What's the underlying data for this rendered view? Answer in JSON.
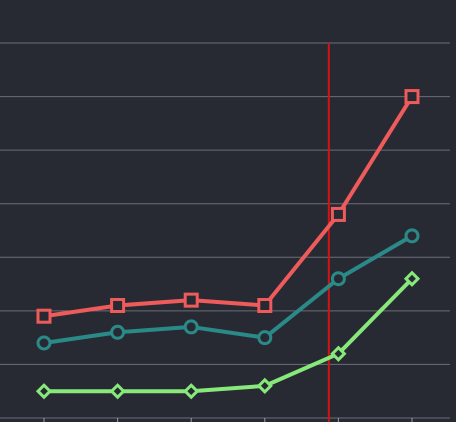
{
  "colors": {
    "background": "#272a33",
    "grid": "#6b6e76",
    "marker_line": "#d41313",
    "axis_tick": "#9a9da4"
  },
  "chart_data": {
    "type": "line",
    "x": [
      1,
      2,
      3,
      4,
      5,
      6
    ],
    "ylim": [
      0,
      7
    ],
    "grid": "horizontal",
    "vertical_marker_x": 4.87,
    "series": [
      {
        "color": "#ef5b5b",
        "marker": "square",
        "values": [
          1.9,
          2.1,
          2.2,
          2.1,
          3.8,
          6.0
        ]
      },
      {
        "color": "#2a8a88",
        "marker": "circle",
        "values": [
          1.4,
          1.6,
          1.7,
          1.5,
          2.6,
          3.4
        ]
      },
      {
        "color": "#86e97a",
        "marker": "diamond",
        "values": [
          0.5,
          0.5,
          0.5,
          0.6,
          1.2,
          2.6
        ]
      }
    ]
  }
}
